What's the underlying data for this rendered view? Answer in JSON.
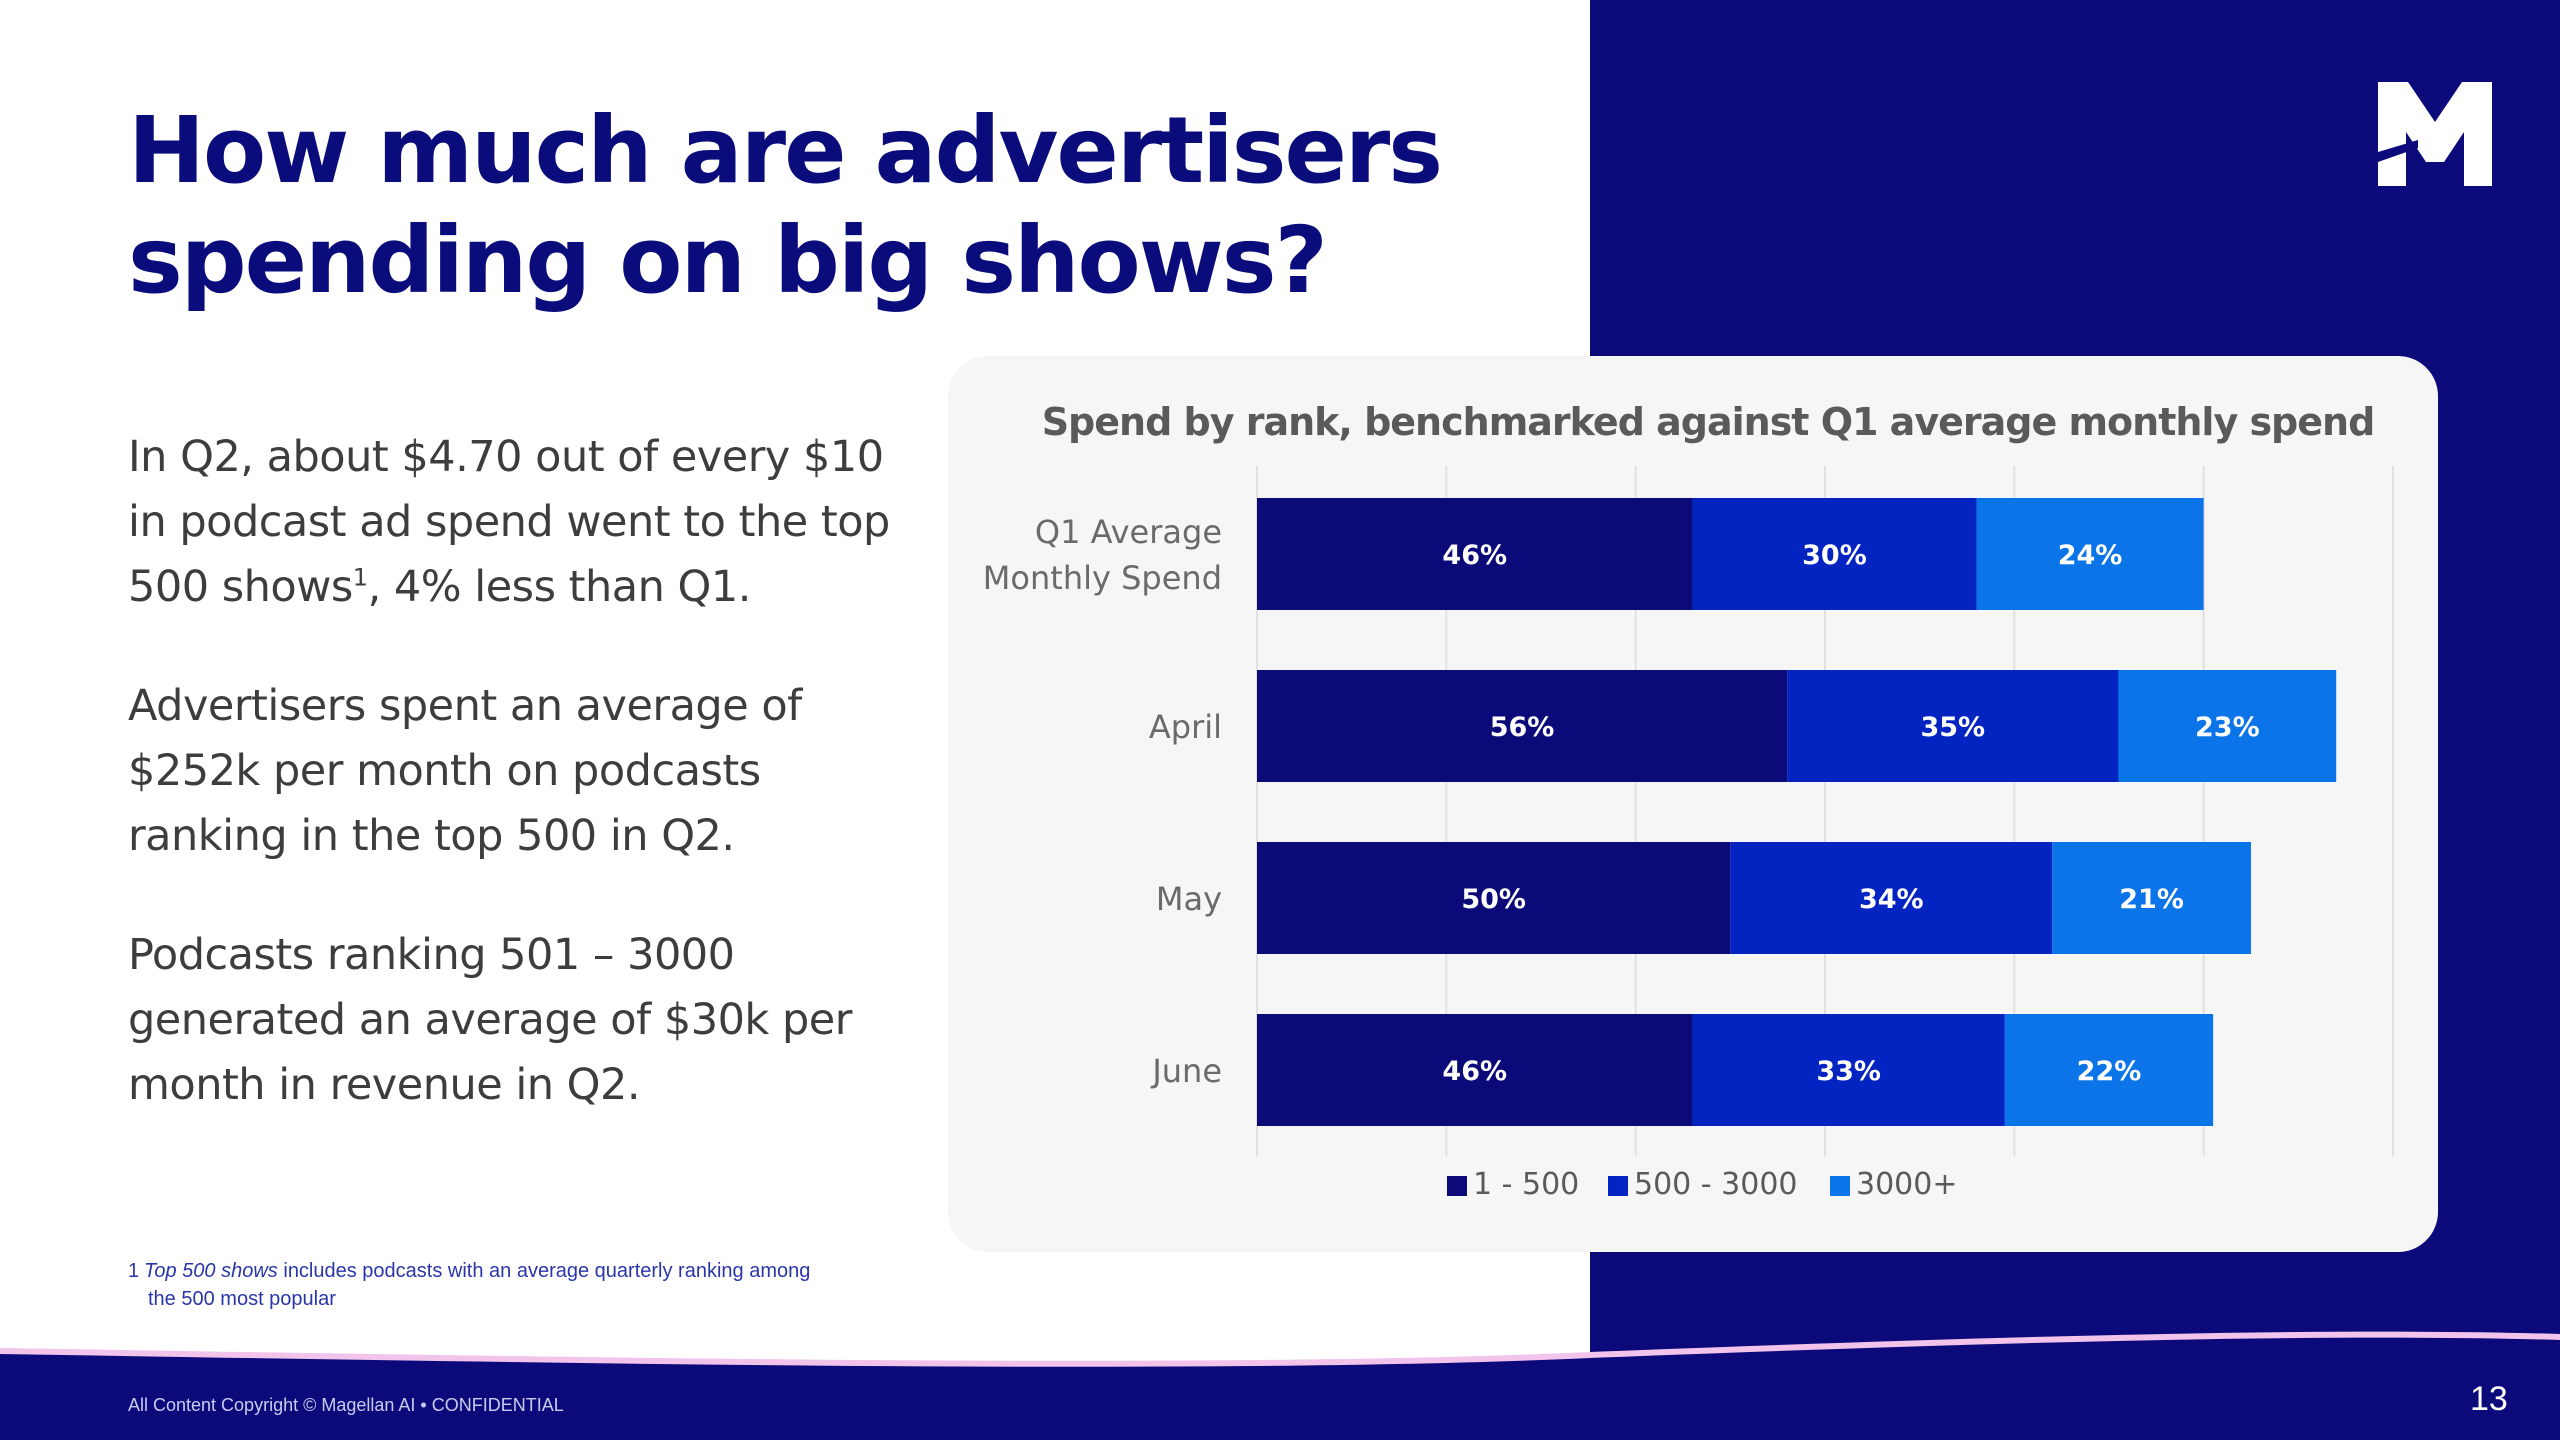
{
  "slide": {
    "title_line1": "How much are advertisers",
    "title_line2": "spending on big shows?",
    "para1_a": "In Q2, about $4.70 out of every $10 in podcast ad spend went to the top 500 shows",
    "para1_sup": "1",
    "para1_b": ", 4% less than Q1.",
    "para2": "Advertisers spent an average of $252k per month on podcasts ranking in the top 500 in Q2.",
    "para3": "Podcasts ranking 501 – 3000 generated an average of $30k per month in revenue in Q2.",
    "footnote_number": "1",
    "footnote_italic": "Top 500 shows",
    "footnote_text1": " includes podcasts with an average quarterly ranking among",
    "footnote_text2": "the 500 most popular",
    "copyright": "All Content Copyright © Magellan AI • CONFIDENTIAL",
    "page_number": "13",
    "logo_icon": "magellan-m-logo"
  },
  "colors": {
    "navy": "#0b0c7b",
    "panel": "#0c0a7a",
    "series1": "#0b0a78",
    "series2": "#0424c2",
    "series3": "#0a74e8",
    "card": "#f6f6f6"
  },
  "chart_data": {
    "type": "bar",
    "orientation": "horizontal",
    "stacked": true,
    "title": "Spend by rank, benchmarked against Q1 average monthly spend",
    "categories": [
      [
        "Q1 Average",
        "Monthly Spend"
      ],
      [
        "April"
      ],
      [
        "May"
      ],
      [
        "June"
      ]
    ],
    "series": [
      {
        "name": "1 - 500",
        "values": [
          46,
          56,
          50,
          46
        ],
        "labels": [
          "46%",
          "56%",
          "50%",
          "46%"
        ]
      },
      {
        "name": "500 - 3000",
        "values": [
          30,
          35,
          34,
          33
        ],
        "labels": [
          "30%",
          "35%",
          "34%",
          "33%"
        ]
      },
      {
        "name": "3000+",
        "values": [
          24,
          23,
          21,
          22
        ],
        "labels": [
          "24%",
          "23%",
          "21%",
          "22%"
        ]
      }
    ],
    "xlim": [
      0,
      120
    ],
    "grid": true,
    "legend": "bottom-center",
    "xlabel": "",
    "ylabel": ""
  }
}
